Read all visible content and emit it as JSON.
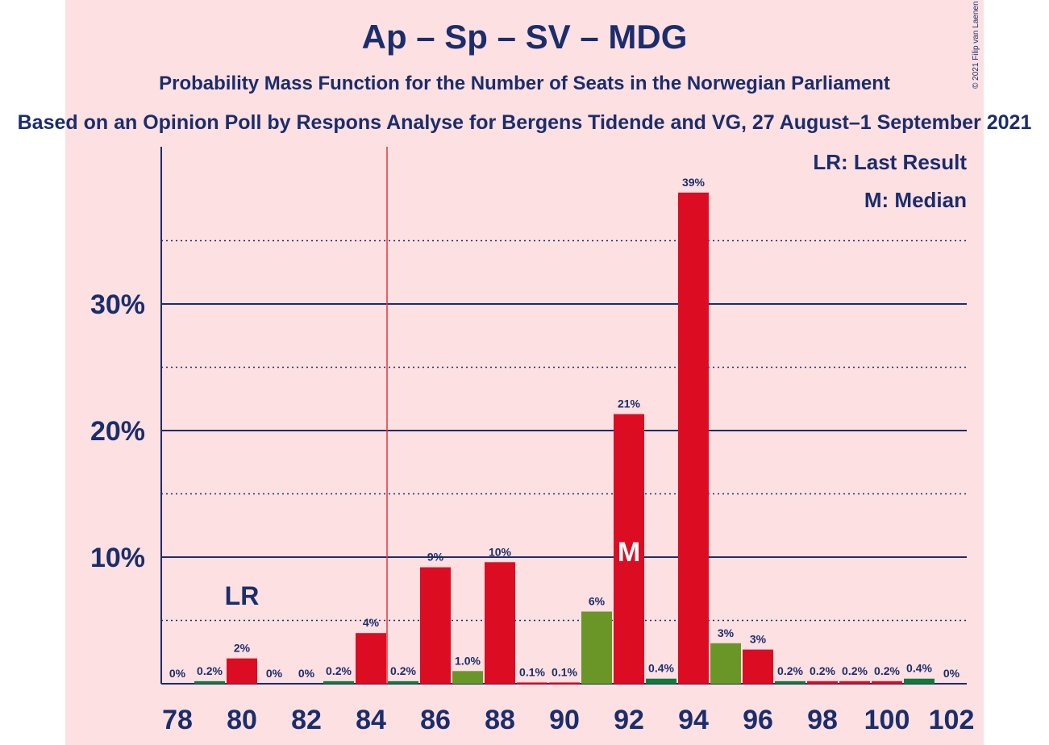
{
  "title": "Ap – Sp – SV – MDG",
  "subtitle": "Probability Mass Function for the Number of Seats in the Norwegian Parliament",
  "subtitle2": "Based on an Opinion Poll by Respons Analyse for Bergens Tidende and VG, 27 August–1 September 2021",
  "copyright": "© 2021 Filip van Laenen",
  "colors": {
    "background": "#fde0e2",
    "axis": "#1b2d6b",
    "red": "#dc0d22",
    "green": "#6a9628",
    "darkgreen": "#0f7a3a",
    "last_result_line": "#e8323c"
  },
  "chart_data": {
    "type": "bar",
    "x": [
      78,
      79,
      80,
      81,
      82,
      83,
      84,
      85,
      86,
      87,
      88,
      89,
      90,
      91,
      92,
      93,
      94,
      95,
      96,
      97,
      98,
      99,
      100,
      101,
      102
    ],
    "values": [
      0,
      0.2,
      2.0,
      0,
      0,
      0.2,
      4.0,
      0.2,
      9.2,
      1.0,
      9.6,
      0.1,
      0.1,
      5.7,
      21.3,
      0.4,
      38.8,
      3.2,
      2.7,
      0.2,
      0.2,
      0.2,
      0.2,
      0.4,
      0
    ],
    "data_labels": [
      "0%",
      "0.2%",
      "2%",
      "0%",
      "0%",
      "0.2%",
      "4%",
      "0.2%",
      "9%",
      "1.0%",
      "10%",
      "0.1%",
      "0.1%",
      "6%",
      "21%",
      "0.4%",
      "39%",
      "3%",
      "3%",
      "0.2%",
      "0.2%",
      "0.2%",
      "0.2%",
      "0.4%",
      "0%"
    ],
    "bar_colors": [
      "red",
      "darkgreen",
      "red",
      "red",
      "red",
      "darkgreen",
      "red",
      "darkgreen",
      "red",
      "green",
      "red",
      "red",
      "red",
      "green",
      "red",
      "darkgreen",
      "red",
      "green",
      "red",
      "darkgreen",
      "red",
      "red",
      "red",
      "darkgreen",
      "red"
    ],
    "xticks": [
      "78",
      "80",
      "82",
      "84",
      "86",
      "88",
      "90",
      "92",
      "94",
      "96",
      "98",
      "100",
      "102"
    ],
    "yticks": [
      {
        "value": 10,
        "label": "10%"
      },
      {
        "value": 20,
        "label": "20%"
      },
      {
        "value": 30,
        "label": "30%"
      }
    ],
    "minor_grid": [
      5,
      15,
      25,
      35
    ],
    "ylim": [
      0,
      42.5
    ],
    "last_result": {
      "x": 80,
      "label": "LR"
    },
    "median": {
      "x": 92,
      "label": "M"
    },
    "majority_line_x": 84.5,
    "legend": [
      "LR: Last Result",
      "M: Median"
    ],
    "legend_position": "top-right",
    "xlabel": "",
    "ylabel": ""
  }
}
